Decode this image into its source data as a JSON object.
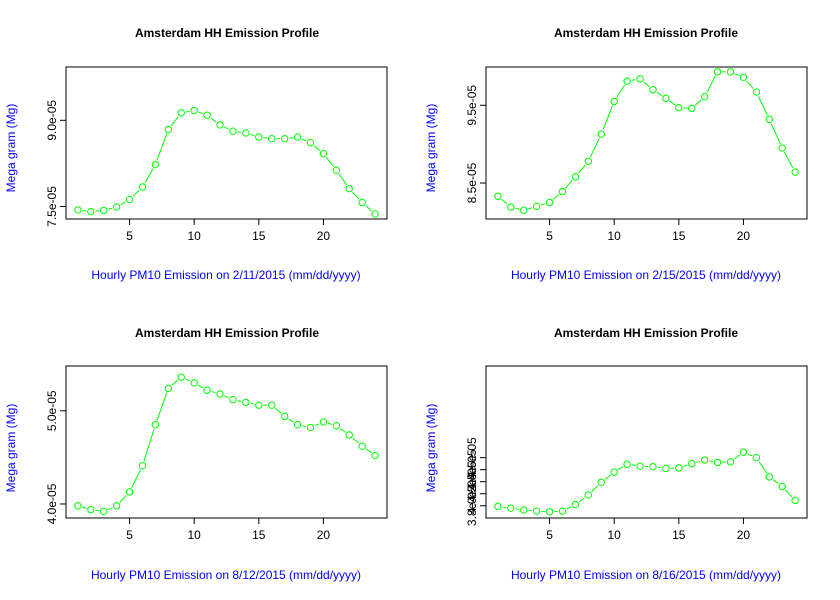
{
  "colors": {
    "series": "#00ff00",
    "axis_labels": "#0000ff",
    "title": "#000000",
    "frame": "#000000"
  },
  "chart_data": [
    {
      "type": "line",
      "title": "Amsterdam HH Emission Profile",
      "xlabel": "Hourly PM10 Emission on 2/11/2015 (mm/dd/yyyy)",
      "ylabel": "Mega gram (Mg)",
      "xlim": [
        1,
        24
      ],
      "ylim": [
        7.38e-05,
        9.83e-05
      ],
      "xticks": [
        5,
        10,
        15,
        20
      ],
      "xtick_labels": [
        "5",
        "10",
        "15",
        "20"
      ],
      "yticks": [
        7.5e-05,
        9e-05
      ],
      "ytick_labels": [
        "7.5e-05",
        "9.0e-05"
      ],
      "grid": false,
      "x": [
        1,
        2,
        3,
        4,
        5,
        6,
        7,
        8,
        9,
        10,
        11,
        12,
        13,
        14,
        15,
        16,
        17,
        18,
        19,
        20,
        21,
        22,
        23,
        24
      ],
      "values": [
        7.44e-05,
        7.41e-05,
        7.43e-05,
        7.49e-05,
        7.62e-05,
        7.84e-05,
        8.23e-05,
        8.84e-05,
        9.13e-05,
        9.17e-05,
        9.09e-05,
        8.92e-05,
        8.81e-05,
        8.78e-05,
        8.71e-05,
        8.68e-05,
        8.68e-05,
        8.71e-05,
        8.61e-05,
        8.42e-05,
        8.13e-05,
        7.81e-05,
        7.57e-05,
        7.37e-05
      ]
    },
    {
      "type": "line",
      "title": "Amsterdam HH Emission Profile",
      "xlabel": "Hourly PM10 Emission on 2/15/2015 (mm/dd/yyyy)",
      "ylabel": "Mega gram (Mg)",
      "xlim": [
        1,
        24
      ],
      "ylim": [
        8.11e-05,
        9.92e-05
      ],
      "xticks": [
        5,
        10,
        15,
        20
      ],
      "xtick_labels": [
        "5",
        "10",
        "15",
        "20"
      ],
      "yticks": [
        8.5e-05,
        9.5e-05
      ],
      "ytick_labels": [
        "8.5e-05",
        "9.5e-05"
      ],
      "grid": false,
      "x": [
        1,
        2,
        3,
        4,
        5,
        6,
        7,
        8,
        9,
        10,
        11,
        12,
        13,
        14,
        15,
        16,
        17,
        18,
        19,
        20,
        21,
        22,
        23,
        24
      ],
      "values": [
        8.33e-05,
        8.19e-05,
        8.15e-05,
        8.2e-05,
        8.25e-05,
        8.39e-05,
        8.58e-05,
        8.78e-05,
        9.13e-05,
        9.55e-05,
        9.81e-05,
        9.84e-05,
        9.7e-05,
        9.59e-05,
        9.47e-05,
        9.46e-05,
        9.61e-05,
        9.93e-05,
        9.93e-05,
        9.86e-05,
        9.67e-05,
        9.32e-05,
        8.95e-05,
        8.64e-05
      ]
    },
    {
      "type": "line",
      "title": "Amsterdam HH Emission Profile",
      "xlabel": "Hourly PM10 Emission on 8/12/2015 (mm/dd/yyyy)",
      "ylabel": "Mega gram (Mg)",
      "xlim": [
        1,
        24
      ],
      "ylim": [
        3.91e-05,
        5.42e-05
      ],
      "xticks": [
        5,
        10,
        15,
        20
      ],
      "xtick_labels": [
        "5",
        "10",
        "15",
        "20"
      ],
      "yticks": [
        4e-05,
        5e-05
      ],
      "ytick_labels": [
        "4.0e-05",
        "5.0e-05"
      ],
      "grid": false,
      "x": [
        1,
        2,
        3,
        4,
        5,
        6,
        7,
        8,
        9,
        10,
        11,
        12,
        13,
        14,
        15,
        16,
        17,
        18,
        19,
        20,
        21,
        22,
        23,
        24
      ],
      "values": [
        3.98e-05,
        3.94e-05,
        3.92e-05,
        3.98e-05,
        4.13e-05,
        4.41e-05,
        4.85e-05,
        5.24e-05,
        5.36e-05,
        5.3e-05,
        5.22e-05,
        5.18e-05,
        5.12e-05,
        5.09e-05,
        5.06e-05,
        5.06e-05,
        4.94e-05,
        4.85e-05,
        4.82e-05,
        4.88e-05,
        4.84e-05,
        4.74e-05,
        4.62e-05,
        4.52e-05
      ]
    },
    {
      "type": "line",
      "title": "Amsterdam HH Emission Profile",
      "xlabel": "Hourly PM10 Emission on 8/16/2015 (mm/dd/yyyy)",
      "ylabel": "Mega gram (Mg)",
      "xlim": [
        1,
        24
      ],
      "ylim": [
        3.69e-05,
        6.03e-05
      ],
      "xticks": [
        5,
        10,
        15,
        20
      ],
      "xtick_labels": [
        "5",
        "10",
        "15",
        "20"
      ],
      "yticks": [
        3.8e-05,
        4e-05,
        4.2e-05,
        4.4e-05,
        4.6e-05
      ],
      "ytick_labels": [
        "3.8e-05",
        "4.0e-05",
        "4.2e-05",
        "4.4e-05",
        "4.6e-05"
      ],
      "grid": false,
      "x": [
        1,
        2,
        3,
        4,
        5,
        6,
        7,
        8,
        9,
        10,
        11,
        12,
        13,
        14,
        15,
        16,
        17,
        18,
        19,
        20,
        21,
        22,
        23,
        24
      ],
      "values": [
        3.79e-05,
        3.76e-05,
        3.73e-05,
        3.71e-05,
        3.7e-05,
        3.71e-05,
        3.82e-05,
        3.98e-05,
        4.19e-05,
        4.36e-05,
        4.49e-05,
        4.46e-05,
        4.45e-05,
        4.42e-05,
        4.43e-05,
        4.5e-05,
        4.56e-05,
        4.52e-05,
        4.53e-05,
        4.69e-05,
        4.6e-05,
        4.28e-05,
        4.12e-05,
        3.89e-05
      ]
    }
  ]
}
